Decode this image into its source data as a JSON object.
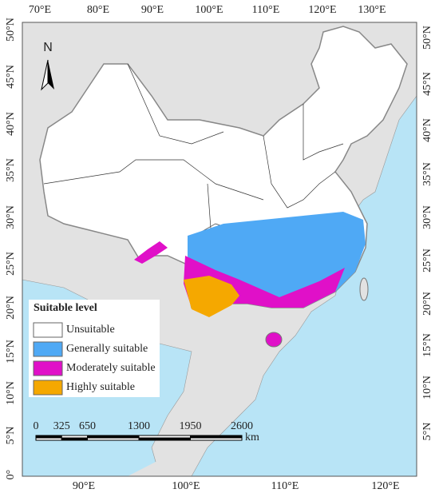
{
  "map": {
    "top_labels": [
      "70°E",
      "80°E",
      "90°E",
      "100°E",
      "110°E",
      "120°E",
      "130°E"
    ],
    "bottom_labels": [
      "90°E",
      "100°E",
      "110°E",
      "120°E"
    ],
    "left_labels": [
      "50°N",
      "45°N",
      "40°N",
      "35°N",
      "30°N",
      "25°N",
      "20°N",
      "15°N",
      "10°N",
      "5°N",
      "0°"
    ],
    "right_labels": [
      "50°N",
      "45°N",
      "40°N",
      "35°N",
      "30°N",
      "25°N",
      "20°N",
      "15°N",
      "10°N",
      "5°N"
    ],
    "north": "N",
    "legend": {
      "title": "Suitable level",
      "items": [
        {
          "label": "Unsuitable",
          "color": "#ffffff"
        },
        {
          "label": "Generally suitable",
          "color": "#4fa9f5"
        },
        {
          "label": "Moderately suitable",
          "color": "#e010c8"
        },
        {
          "label": "Highly suitable",
          "color": "#f5a800"
        }
      ]
    },
    "scale_bar": {
      "ticks": [
        0,
        325,
        650,
        1300,
        1950,
        2600
      ],
      "unit": "km"
    }
  }
}
